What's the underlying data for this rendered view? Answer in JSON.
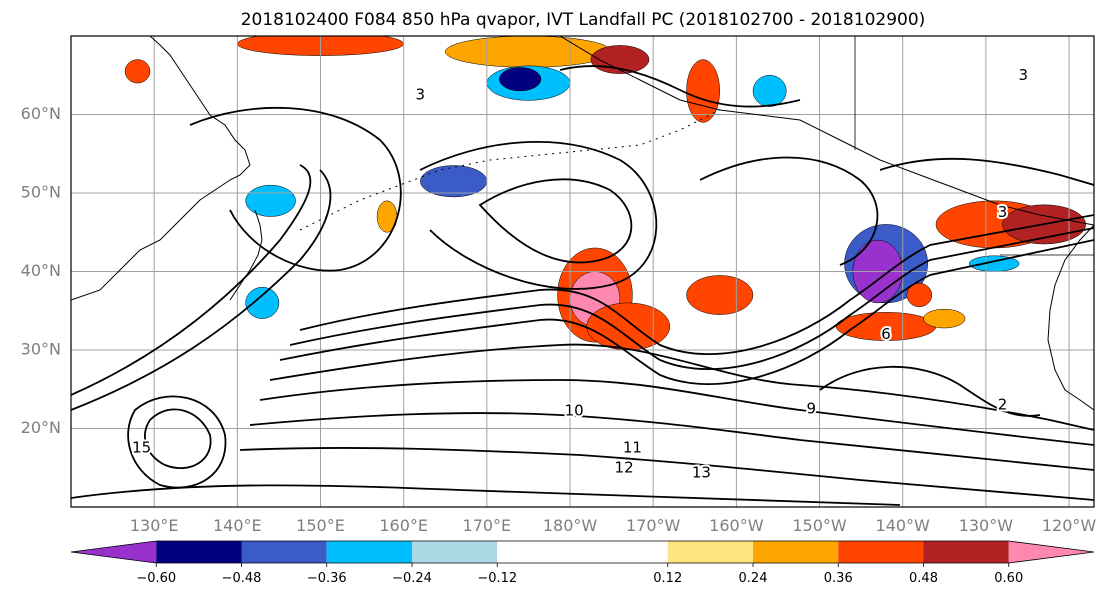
{
  "chart_data": {
    "type": "heatmap",
    "title": "2018102400 F084 850 hPa qvapor, IVT Landfall PC (2018102700 - 2018102900)",
    "map": {
      "lon_range": [
        120,
        243
      ],
      "lat_range": [
        10,
        70
      ],
      "projection": "PlateCarree",
      "grid": true,
      "lat_ticks": [
        {
          "value": 60,
          "label": "60°N"
        },
        {
          "value": 50,
          "label": "50°N"
        },
        {
          "value": 40,
          "label": "40°N"
        },
        {
          "value": 30,
          "label": "30°N"
        },
        {
          "value": 20,
          "label": "20°N"
        }
      ],
      "lon_ticks": [
        {
          "value": 130,
          "label": "130°E"
        },
        {
          "value": 140,
          "label": "140°E"
        },
        {
          "value": 150,
          "label": "150°E"
        },
        {
          "value": 160,
          "label": "160°E"
        },
        {
          "value": 170,
          "label": "170°E"
        },
        {
          "value": 180,
          "label": "180°W"
        },
        {
          "value": 190,
          "label": "170°W"
        },
        {
          "value": 200,
          "label": "160°W"
        },
        {
          "value": 210,
          "label": "150°W"
        },
        {
          "value": 220,
          "label": "140°W"
        },
        {
          "value": 230,
          "label": "130°W"
        },
        {
          "value": 240,
          "label": "120°W"
        }
      ]
    },
    "colorbar": {
      "orientation": "horizontal",
      "extend": "both",
      "bounds": [
        -0.72,
        -0.6,
        -0.48,
        -0.36,
        -0.24,
        -0.12,
        0.12,
        0.24,
        0.36,
        0.48,
        0.6,
        0.72
      ],
      "colors": [
        "#9932cc",
        "#000080",
        "#3a5bc8",
        "#00bfff",
        "#add8e6",
        "#ffffff",
        "#ffe680",
        "#ffa500",
        "#ff4500",
        "#b22222",
        "#ff88b0"
      ],
      "tick_labels": [
        "−0.60",
        "−0.48",
        "−0.36",
        "−0.24",
        "−0.12",
        "0.12",
        "0.24",
        "0.36",
        "0.48",
        "0.60"
      ]
    },
    "contour_labels": [
      {
        "text": "10",
        "lon": 180.5,
        "lat": 22.2
      },
      {
        "text": "11",
        "lon": 187.5,
        "lat": 17.5
      },
      {
        "text": "12",
        "lon": 186.5,
        "lat": 15.0
      },
      {
        "text": "13",
        "lon": 195.8,
        "lat": 14.3
      },
      {
        "text": "15",
        "lon": 128.5,
        "lat": 17.5
      },
      {
        "text": "3",
        "lon": 234.5,
        "lat": 65.0
      },
      {
        "text": "3",
        "lon": 232.0,
        "lat": 47.5
      },
      {
        "text": "3",
        "lon": 162.0,
        "lat": 62.5
      },
      {
        "text": "6",
        "lon": 218.0,
        "lat": 32.0
      },
      {
        "text": "9",
        "lon": 209.0,
        "lat": 22.5
      },
      {
        "text": "2",
        "lon": 232.0,
        "lat": 23.0
      }
    ],
    "anomaly_patches": [
      {
        "lon": 183,
        "lat": 37,
        "rx": 4.5,
        "ry": 6,
        "color": "#ff4500"
      },
      {
        "lon": 183,
        "lat": 36.5,
        "rx": 3,
        "ry": 3.5,
        "color": "#ff88b0"
      },
      {
        "lon": 187,
        "lat": 33,
        "rx": 5,
        "ry": 3,
        "color": "#ff4500"
      },
      {
        "lon": 198,
        "lat": 37,
        "rx": 4,
        "ry": 2.5,
        "color": "#ff4500"
      },
      {
        "lon": 231,
        "lat": 46,
        "rx": 7,
        "ry": 3,
        "color": "#ff4500"
      },
      {
        "lon": 237,
        "lat": 46,
        "rx": 5,
        "ry": 2.5,
        "color": "#b22222"
      },
      {
        "lon": 218,
        "lat": 33,
        "rx": 6,
        "ry": 1.8,
        "color": "#ff4500"
      },
      {
        "lon": 196,
        "lat": 63,
        "rx": 2,
        "ry": 4,
        "color": "#ff4500"
      },
      {
        "lon": 150,
        "lat": 69,
        "rx": 10,
        "ry": 1.5,
        "color": "#ff4500"
      },
      {
        "lon": 175,
        "lat": 68,
        "rx": 10,
        "ry": 2,
        "color": "#ffa500"
      },
      {
        "lon": 186,
        "lat": 67,
        "rx": 3.5,
        "ry": 1.8,
        "color": "#b22222"
      },
      {
        "lon": 218,
        "lat": 41,
        "rx": 5,
        "ry": 5,
        "color": "#3a5bc8"
      },
      {
        "lon": 217,
        "lat": 40,
        "rx": 3,
        "ry": 4,
        "color": "#9932cc"
      },
      {
        "lon": 175,
        "lat": 64,
        "rx": 5,
        "ry": 2.2,
        "color": "#00bfff"
      },
      {
        "lon": 174,
        "lat": 64.5,
        "rx": 2.5,
        "ry": 1.5,
        "color": "#000080"
      },
      {
        "lon": 166,
        "lat": 51.5,
        "rx": 4,
        "ry": 2,
        "color": "#3a5bc8"
      },
      {
        "lon": 144,
        "lat": 49,
        "rx": 3,
        "ry": 2,
        "color": "#00bfff"
      },
      {
        "lon": 128,
        "lat": 65.5,
        "rx": 1.5,
        "ry": 1.5,
        "color": "#ff4500"
      },
      {
        "lon": 158,
        "lat": 47,
        "rx": 1.2,
        "ry": 2,
        "color": "#ffa500"
      },
      {
        "lon": 222,
        "lat": 37,
        "rx": 1.5,
        "ry": 1.5,
        "color": "#ff4500"
      },
      {
        "lon": 225,
        "lat": 34,
        "rx": 2.5,
        "ry": 1.2,
        "color": "#ffa500"
      },
      {
        "lon": 231,
        "lat": 41,
        "rx": 3,
        "ry": 1,
        "color": "#00bfff"
      },
      {
        "lon": 204,
        "lat": 63,
        "rx": 2,
        "ry": 2,
        "color": "#00bfff"
      },
      {
        "lon": 143,
        "lat": 36,
        "rx": 2,
        "ry": 2,
        "color": "#00bfff"
      }
    ]
  }
}
